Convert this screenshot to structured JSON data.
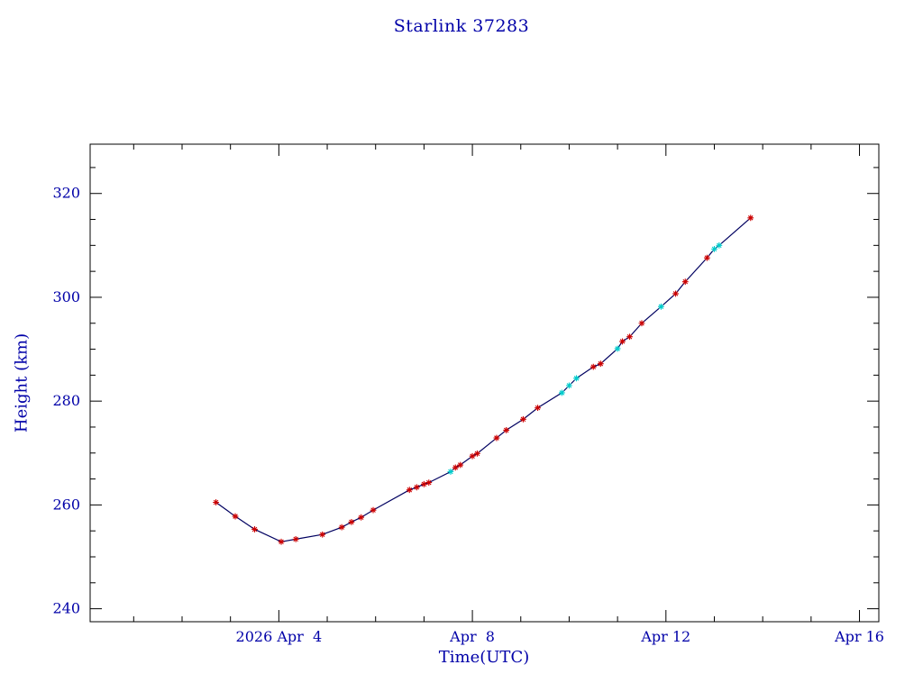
{
  "title": "Starlink 37283",
  "colors": {
    "background": "#ffffff",
    "text": "#0000a8",
    "frame": "#000000",
    "line": "#000060",
    "marker_red": "#cc0000",
    "marker_cyan": "#00cccc"
  },
  "chart_data": {
    "type": "line",
    "title": "Starlink 37283",
    "xlabel": "Time(UTC)",
    "ylabel": "Height (km)",
    "xlim": [
      0.1,
      16.4
    ],
    "ylim": [
      237.5,
      329.5
    ],
    "grid": false,
    "legend": "none",
    "xticks": [
      {
        "value": 4,
        "label": "2026 Apr  4"
      },
      {
        "value": 8,
        "label": "Apr  8"
      },
      {
        "value": 12,
        "label": "Apr 12"
      },
      {
        "value": 16,
        "label": "Apr 16"
      }
    ],
    "yticks": [
      {
        "value": 240,
        "label": "240"
      },
      {
        "value": 260,
        "label": "260"
      },
      {
        "value": 280,
        "label": "280"
      },
      {
        "value": 300,
        "label": "300"
      },
      {
        "value": 320,
        "label": "320"
      }
    ],
    "x_minor_step": 1,
    "y_minor_step": 5,
    "points": [
      [
        2.7,
        260.5,
        "red"
      ],
      [
        3.1,
        257.8,
        "red"
      ],
      [
        3.5,
        255.3,
        "red"
      ],
      [
        4.05,
        252.9,
        "red"
      ],
      [
        4.35,
        253.4,
        "red"
      ],
      [
        4.9,
        254.3,
        "red"
      ],
      [
        5.3,
        255.7,
        "red"
      ],
      [
        5.5,
        256.7,
        "red"
      ],
      [
        5.7,
        257.6,
        "red"
      ],
      [
        5.95,
        259.0,
        "red"
      ],
      [
        6.7,
        262.9,
        "red"
      ],
      [
        6.85,
        263.4,
        "red"
      ],
      [
        7.0,
        264.0,
        "red"
      ],
      [
        7.1,
        264.3,
        "red"
      ],
      [
        7.55,
        266.4,
        "cyan"
      ],
      [
        7.65,
        267.2,
        "red"
      ],
      [
        7.75,
        267.7,
        "red"
      ],
      [
        8.0,
        269.4,
        "red"
      ],
      [
        8.1,
        269.9,
        "red"
      ],
      [
        8.5,
        272.9,
        "red"
      ],
      [
        8.7,
        274.4,
        "red"
      ],
      [
        9.05,
        276.5,
        "red"
      ],
      [
        9.35,
        278.7,
        "red"
      ],
      [
        9.85,
        281.6,
        "cyan"
      ],
      [
        10.0,
        283.0,
        "cyan"
      ],
      [
        10.15,
        284.4,
        "cyan"
      ],
      [
        10.5,
        286.6,
        "red"
      ],
      [
        10.65,
        287.2,
        "red"
      ],
      [
        11.0,
        290.1,
        "cyan"
      ],
      [
        11.1,
        291.5,
        "red"
      ],
      [
        11.25,
        292.4,
        "red"
      ],
      [
        11.5,
        295.0,
        "red"
      ],
      [
        11.9,
        298.2,
        "cyan"
      ],
      [
        12.2,
        300.7,
        "red"
      ],
      [
        12.4,
        303.0,
        "red"
      ],
      [
        12.85,
        307.6,
        "red"
      ],
      [
        13.0,
        309.3,
        "cyan"
      ],
      [
        13.1,
        310.0,
        "cyan"
      ],
      [
        13.75,
        315.3,
        "red"
      ]
    ]
  }
}
